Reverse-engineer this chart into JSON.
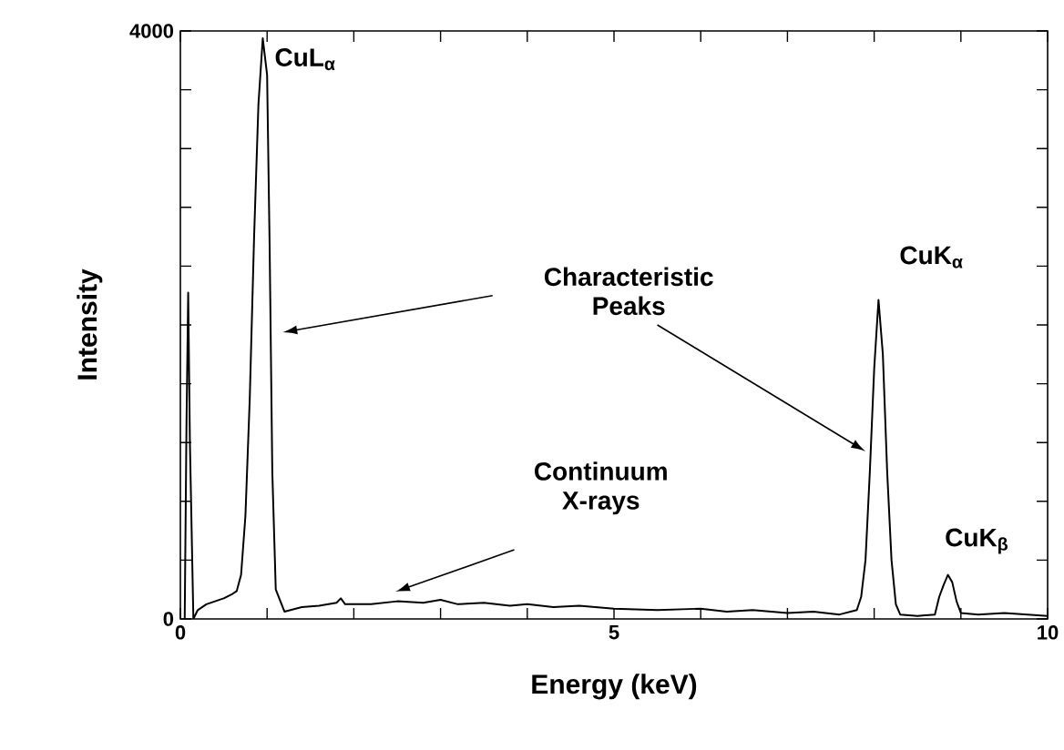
{
  "chart_data": {
    "type": "line",
    "xlabel": "Energy (keV)",
    "ylabel": "Intensity",
    "x": [
      0.05,
      0.07,
      0.09,
      0.11,
      0.15,
      0.2,
      0.3,
      0.4,
      0.5,
      0.6,
      0.65,
      0.7,
      0.75,
      0.8,
      0.85,
      0.9,
      0.95,
      1.0,
      1.03,
      1.06,
      1.1,
      1.2,
      1.4,
      1.6,
      1.8,
      1.85,
      1.9,
      2.2,
      2.5,
      2.8,
      3.0,
      3.2,
      3.5,
      3.8,
      4.0,
      4.3,
      4.6,
      5.0,
      5.5,
      6.0,
      6.3,
      6.6,
      7.0,
      7.3,
      7.6,
      7.8,
      7.85,
      7.9,
      7.95,
      8.0,
      8.05,
      8.1,
      8.15,
      8.2,
      8.25,
      8.3,
      8.5,
      8.7,
      8.75,
      8.8,
      8.85,
      8.9,
      8.95,
      9.0,
      9.2,
      9.5,
      10.0
    ],
    "values": [
      0,
      1300,
      2220,
      1200,
      0,
      60,
      100,
      120,
      140,
      170,
      190,
      300,
      700,
      1500,
      2600,
      3500,
      3950,
      3700,
      2500,
      1000,
      200,
      50,
      80,
      90,
      110,
      140,
      100,
      100,
      120,
      110,
      130,
      100,
      110,
      90,
      100,
      80,
      90,
      70,
      60,
      70,
      50,
      60,
      40,
      50,
      30,
      60,
      150,
      400,
      1000,
      1700,
      2170,
      1800,
      1000,
      400,
      100,
      30,
      20,
      30,
      150,
      230,
      300,
      250,
      120,
      40,
      30,
      40,
      20
    ],
    "color": "#000000",
    "marker": "none",
    "line_style": "solid",
    "grid": false,
    "xlim": [
      0,
      10
    ],
    "ylim": [
      0,
      4000
    ],
    "xticks": [
      0,
      {
        "value": 1,
        "label": null
      },
      {
        "value": 2,
        "label": null
      },
      {
        "value": 3,
        "label": null
      },
      {
        "value": 4,
        "label": null
      },
      5,
      {
        "value": 6,
        "label": null
      },
      {
        "value": 7,
        "label": null
      },
      {
        "value": 8,
        "label": null
      },
      {
        "value": 9,
        "label": null
      },
      10
    ],
    "yticks": [
      0,
      {
        "value": 400,
        "label": null
      },
      {
        "value": 800,
        "label": null
      },
      {
        "value": 1200,
        "label": null
      },
      {
        "value": 1600,
        "label": null
      },
      {
        "value": 2000,
        "label": null
      },
      {
        "value": 2400,
        "label": null
      },
      {
        "value": 2800,
        "label": null
      },
      {
        "value": 3200,
        "label": null
      },
      {
        "value": 3600,
        "label": null
      },
      4000
    ],
    "annotations": [
      {
        "text": "CuL$_{α}$",
        "x": 0.95,
        "y": 3950
      },
      {
        "text": "CuK$_{α}$",
        "x": 8.05,
        "y": 2170
      },
      {
        "text": "CuK$_{β}$",
        "x": 8.85,
        "y": 300
      },
      "Characteristic Peaks",
      "Continuum X-rays"
    ]
  }
}
